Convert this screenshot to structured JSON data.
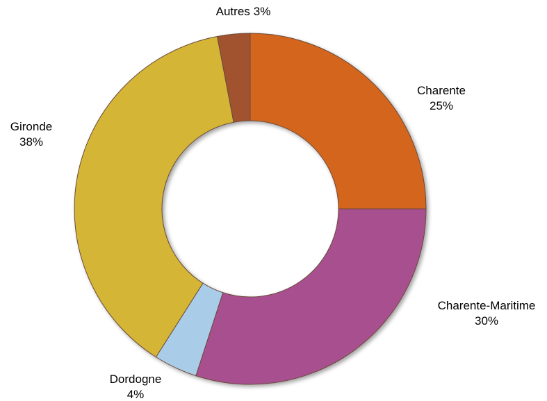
{
  "chart_data": {
    "type": "donut",
    "categories": [
      "Charente",
      "Charente-Maritime",
      "Dordogne",
      "Gironde",
      "Autres"
    ],
    "values": [
      25,
      30,
      4,
      38,
      3
    ],
    "value_labels": [
      "25%",
      "30%",
      "4%",
      "38%",
      "3%"
    ],
    "colors": [
      "#d4651a",
      "#a8508f",
      "#a9cde8",
      "#d4b535",
      "#a0522d"
    ]
  }
}
